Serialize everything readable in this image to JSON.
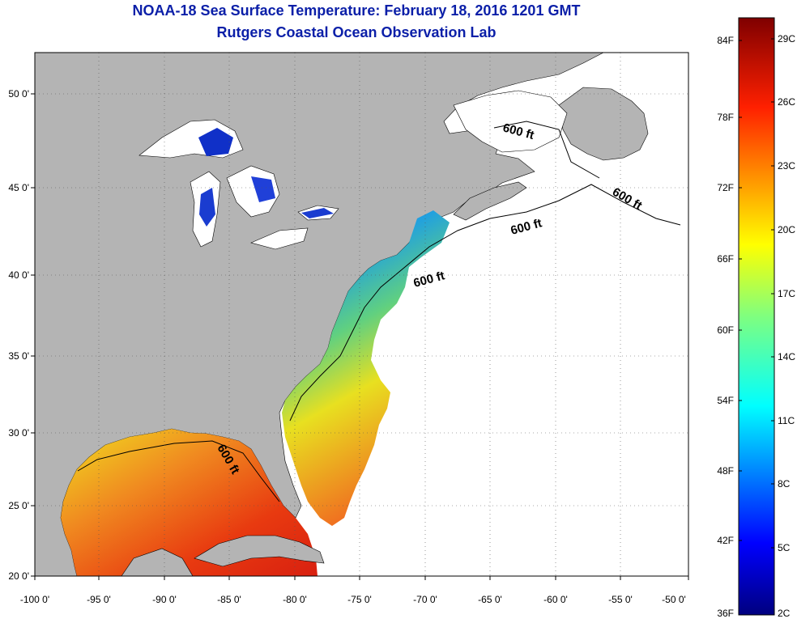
{
  "title": "NOAA-18 Sea Surface Temperature:  February 18, 2016 1201 GMT",
  "subtitle": "Rutgers Coastal Ocean Observation Lab",
  "axes": {
    "lat_ticks": [
      "50 0'",
      "45 0'",
      "40 0'",
      "35 0'",
      "30 0'",
      "25 0'",
      "20 0'"
    ],
    "lon_ticks": [
      "-100 0'",
      "-95 0'",
      "-90 0'",
      "-85 0'",
      "-80 0'",
      "-75 0'",
      "-70 0'",
      "-65 0'",
      "-60 0'",
      "-55 0'",
      "-50 0'"
    ]
  },
  "contour_label": "600 ft",
  "colorbar": {
    "fahrenheit": [
      "84F",
      "78F",
      "72F",
      "66F",
      "60F",
      "54F",
      "48F",
      "42F",
      "36F"
    ],
    "celsius": [
      "29C",
      "26C",
      "23C",
      "20C",
      "17C",
      "14C",
      "11C",
      "8C",
      "5C",
      "2C"
    ]
  },
  "colors": {
    "land": "#b4b4b4",
    "ocean_nodata": "#ffffff",
    "title": "#0b1fa8"
  }
}
